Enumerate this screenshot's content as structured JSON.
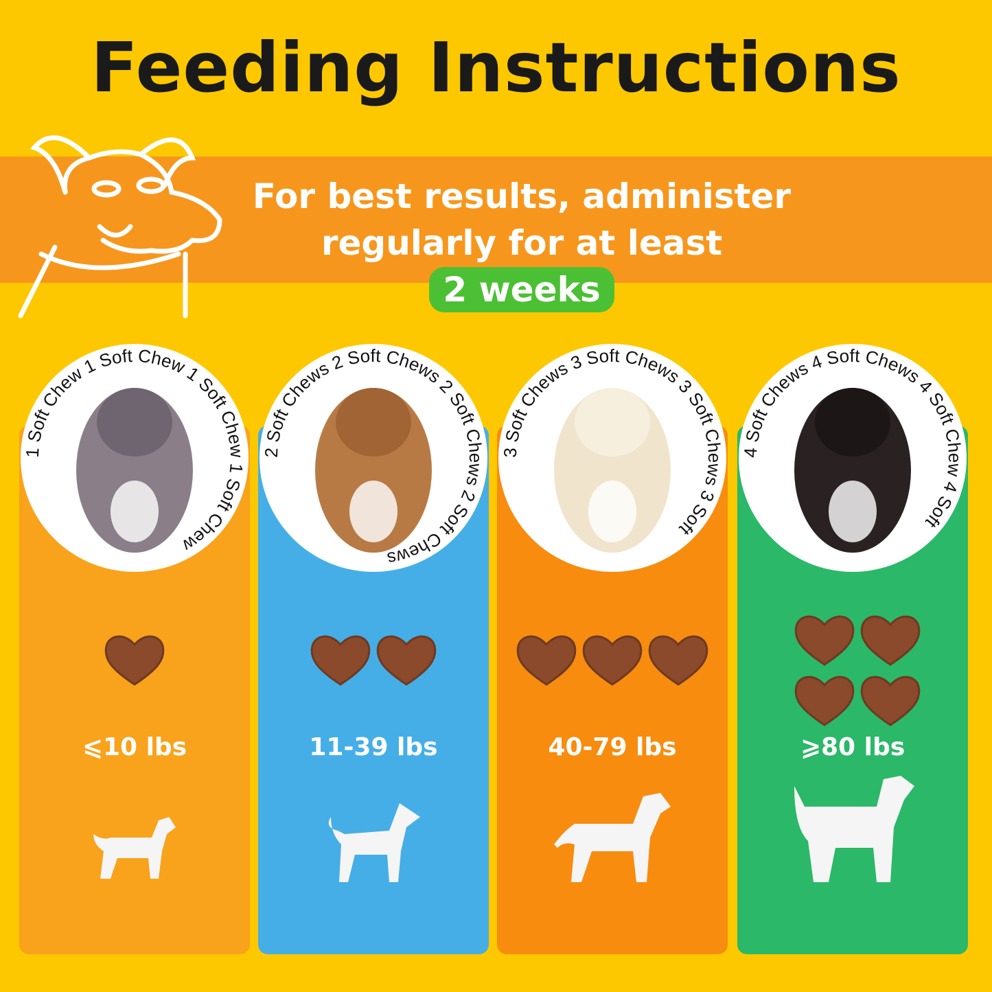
{
  "title": "Feeding Instructions",
  "banner": {
    "line1": "For best results, administer",
    "line2": "regularly for at least",
    "highlight": "2 weeks",
    "highlight_color": "#4CC034"
  },
  "colors": {
    "background": "#FDC800",
    "banner": "#F7961C",
    "chew": "#8B4A2B"
  },
  "columns": [
    {
      "color": "#F9A21B",
      "ring_text": "1 Soft Chew 1 Soft Chew 1 Soft Chew 1 Soft Chew",
      "chews": 1,
      "weight": "⩽10 lbs",
      "icon": "small-dog-silhouette-icon"
    },
    {
      "color": "#45AEE6",
      "ring_text": "2 Soft Chews  2 Soft Chews  2 Soft Chews  2 Soft Chews",
      "chews": 2,
      "weight": "11-39 lbs",
      "icon": "medium-dog-silhouette-icon"
    },
    {
      "color": "#F78C0F",
      "ring_text": "3 Soft Chews  3 Soft Chews  3 Soft Chews  3 Soft",
      "chews": 3,
      "weight": "40-79 lbs",
      "icon": "large-dog-silhouette-icon"
    },
    {
      "color": "#2BB868",
      "ring_text": "4 Soft Chews  4 Soft Chews  4 Soft Chew  4 Soft",
      "chews": 4,
      "weight": "⩾80 lbs",
      "icon": "giant-dog-silhouette-icon"
    }
  ]
}
